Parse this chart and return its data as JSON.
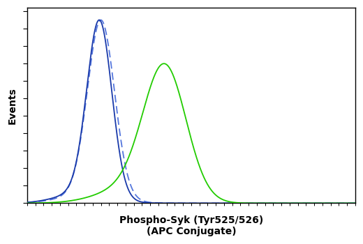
{
  "title": "",
  "xlabel": "Phospho-Syk (Tyr525/526)\n(APC Conjugate)",
  "ylabel": "Events",
  "xlabel_fontsize": 10,
  "ylabel_fontsize": 10,
  "background_color": "#ffffff",
  "plot_bg_color": "#ffffff",
  "blue_color": "#1a3aaa",
  "dashed_color": "#5577dd",
  "green_color": "#22cc00",
  "blue_peak": 0.22,
  "blue_std": 0.038,
  "green_peak": 0.42,
  "green_std": 0.065,
  "blue_amplitude": 1.05,
  "green_amplitude": 0.8,
  "x_min": 0.0,
  "x_max": 1.0,
  "y_min": 0.0,
  "y_max": 1.12,
  "n_points": 2000,
  "line_width": 1.3
}
